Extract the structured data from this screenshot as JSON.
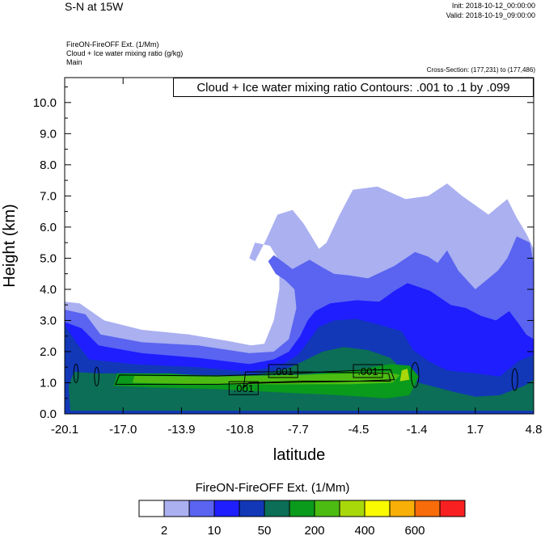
{
  "header": {
    "title": "S-N at 15W",
    "init": "Init: 2018-10-12_00:00:00",
    "valid": "Valid: 2018-10-19_09:00:00"
  },
  "fields": [
    "FireON-FireOFF Ext.   (1/Mm)",
    "Cloud + Ice water mixing ratio   (g/kg)",
    "Main"
  ],
  "cross_section": "Cross-Section: (177,231) to (177,486)",
  "contour_note": "Cloud + Ice water mixing ratio Contours: .001 to .1 by .099",
  "colorbar": {
    "label": "FireON-FireOFF Ext.  (1/Mm)",
    "colors": [
      "#ffffff",
      "#aab0f0",
      "#5a64f0",
      "#1e1eff",
      "#1238b8",
      "#0c6e56",
      "#0a9a1c",
      "#4cbc12",
      "#a8d80a",
      "#fafa00",
      "#f8b008",
      "#f86c0a",
      "#f82020"
    ],
    "tick_labels": [
      "2",
      "10",
      "50",
      "200",
      "400",
      "600"
    ]
  },
  "chart_data": {
    "type": "heatmap",
    "xlabel": "latitude",
    "ylabel": "Height (km)",
    "x_ticks": [
      "-20.1",
      "-17.0",
      "-13.9",
      "-10.8",
      "-7.7",
      "-4.5",
      "-1.4",
      "1.7",
      "4.8"
    ],
    "y_ticks": [
      "0.0",
      "1.0",
      "2.0",
      "3.0",
      "4.0",
      "5.0",
      "6.0",
      "7.0",
      "8.0",
      "9.0",
      "10.0"
    ],
    "xlim": [
      -20.1,
      4.8
    ],
    "ylim": [
      0,
      10.8
    ],
    "contour_labels": [
      {
        "text": ".001",
        "x": -8.5,
        "y": 1.35
      },
      {
        "text": ".001",
        "x": -4.0,
        "y": 1.35
      },
      {
        "text": ".001",
        "x": -10.6,
        "y": 0.8
      }
    ],
    "series": [
      {
        "level": "2",
        "color": "#aab0f0",
        "outline": [
          [
            -20.1,
            3.6
          ],
          [
            -19.3,
            3.55
          ],
          [
            -18.0,
            3.0
          ],
          [
            -16.0,
            2.7
          ],
          [
            -13.5,
            2.55
          ],
          [
            -11.5,
            2.35
          ],
          [
            -10.2,
            2.2
          ],
          [
            -9.5,
            2.25
          ],
          [
            -9.0,
            3.0
          ],
          [
            -8.7,
            4.0
          ],
          [
            -8.7,
            4.9
          ],
          [
            -9.2,
            5.4
          ],
          [
            -10.0,
            5.5
          ],
          [
            -10.3,
            5.0
          ],
          [
            -10.0,
            4.9
          ],
          [
            -9.4,
            5.6
          ],
          [
            -8.8,
            6.4
          ],
          [
            -8.0,
            6.55
          ],
          [
            -7.4,
            6.1
          ],
          [
            -6.6,
            5.3
          ],
          [
            -6.2,
            5.5
          ],
          [
            -5.5,
            6.4
          ],
          [
            -4.8,
            7.2
          ],
          [
            -3.5,
            7.3
          ],
          [
            -2.0,
            6.9
          ],
          [
            -0.8,
            7.0
          ],
          [
            0.2,
            7.4
          ],
          [
            1.0,
            7.0
          ],
          [
            1.7,
            6.7
          ],
          [
            2.4,
            6.4
          ],
          [
            3.4,
            6.9
          ],
          [
            3.9,
            6.3
          ],
          [
            4.4,
            5.8
          ],
          [
            4.8,
            5.3
          ],
          [
            4.8,
            0
          ],
          [
            -20.1,
            0
          ]
        ]
      },
      {
        "level": "10",
        "color": "#5a64f0",
        "outline": [
          [
            -20.1,
            3.35
          ],
          [
            -19.0,
            3.2
          ],
          [
            -18.2,
            2.55
          ],
          [
            -16.0,
            2.3
          ],
          [
            -13.0,
            2.2
          ],
          [
            -10.3,
            1.95
          ],
          [
            -9.0,
            2.0
          ],
          [
            -8.2,
            2.4
          ],
          [
            -7.8,
            3.4
          ],
          [
            -7.9,
            4.0
          ],
          [
            -8.4,
            4.3
          ],
          [
            -8.9,
            4.5
          ],
          [
            -9.3,
            4.9
          ],
          [
            -9.0,
            5.1
          ],
          [
            -8.0,
            4.65
          ],
          [
            -7.1,
            4.95
          ],
          [
            -6.4,
            4.7
          ],
          [
            -5.8,
            4.5
          ],
          [
            -5.0,
            4.45
          ],
          [
            -4.0,
            4.35
          ],
          [
            -2.6,
            4.75
          ],
          [
            -1.5,
            5.2
          ],
          [
            -0.8,
            5.05
          ],
          [
            -0.3,
            4.85
          ],
          [
            0.2,
            5.25
          ],
          [
            0.8,
            4.6
          ],
          [
            1.7,
            4.0
          ],
          [
            2.3,
            4.3
          ],
          [
            2.9,
            4.6
          ],
          [
            3.4,
            5.0
          ],
          [
            3.9,
            5.7
          ],
          [
            4.6,
            5.5
          ],
          [
            4.8,
            4.8
          ],
          [
            4.8,
            0
          ],
          [
            -20.1,
            0
          ]
        ]
      },
      {
        "level": "50",
        "color": "#1e1eff",
        "outline": [
          [
            -20.1,
            2.95
          ],
          [
            -19.2,
            2.75
          ],
          [
            -18.3,
            2.2
          ],
          [
            -16.0,
            1.95
          ],
          [
            -13.0,
            1.8
          ],
          [
            -10.3,
            1.6
          ],
          [
            -9.0,
            1.75
          ],
          [
            -8.2,
            2.0
          ],
          [
            -7.6,
            2.5
          ],
          [
            -7.2,
            3.0
          ],
          [
            -6.8,
            3.3
          ],
          [
            -6.0,
            3.55
          ],
          [
            -4.6,
            3.65
          ],
          [
            -3.4,
            3.6
          ],
          [
            -2.6,
            3.95
          ],
          [
            -1.9,
            4.2
          ],
          [
            -0.7,
            3.95
          ],
          [
            0.4,
            3.5
          ],
          [
            1.2,
            3.4
          ],
          [
            2.0,
            3.15
          ],
          [
            2.8,
            3.0
          ],
          [
            3.5,
            3.3
          ],
          [
            4.0,
            2.9
          ],
          [
            4.4,
            2.55
          ],
          [
            4.8,
            2.4
          ],
          [
            4.8,
            0
          ],
          [
            -20.1,
            0
          ]
        ]
      },
      {
        "level": "100",
        "color": "#1238b8",
        "outline": [
          [
            -20.1,
            2.85
          ],
          [
            -19.5,
            2.3
          ],
          [
            -18.8,
            1.75
          ],
          [
            -16.5,
            1.6
          ],
          [
            -13.0,
            1.5
          ],
          [
            -10.3,
            1.35
          ],
          [
            -8.5,
            1.6
          ],
          [
            -7.7,
            1.9
          ],
          [
            -7.2,
            2.3
          ],
          [
            -6.6,
            2.8
          ],
          [
            -5.8,
            3.0
          ],
          [
            -4.6,
            3.05
          ],
          [
            -3.3,
            2.85
          ],
          [
            -2.2,
            2.65
          ],
          [
            -1.6,
            2.05
          ],
          [
            -0.8,
            1.7
          ],
          [
            0.2,
            1.4
          ],
          [
            1.7,
            1.3
          ],
          [
            3.0,
            1.2
          ],
          [
            4.0,
            1.7
          ],
          [
            4.8,
            1.9
          ],
          [
            4.8,
            0
          ],
          [
            -20.1,
            0
          ]
        ]
      },
      {
        "level": "200",
        "color": "#0c6e56",
        "outline": [
          [
            -19.8,
            0.1
          ],
          [
            -19.9,
            0.9
          ],
          [
            -19.6,
            1.35
          ],
          [
            -18.4,
            1.3
          ],
          [
            -16.0,
            1.3
          ],
          [
            -12.5,
            1.25
          ],
          [
            -10.0,
            1.25
          ],
          [
            -8.3,
            1.45
          ],
          [
            -7.4,
            1.7
          ],
          [
            -6.4,
            2.0
          ],
          [
            -5.3,
            2.15
          ],
          [
            -4.0,
            2.05
          ],
          [
            -2.8,
            1.8
          ],
          [
            -2.0,
            1.3
          ],
          [
            -1.3,
            1.0
          ],
          [
            0.6,
            0.7
          ],
          [
            1.7,
            0.55
          ],
          [
            3.0,
            0.6
          ],
          [
            4.3,
            0.9
          ],
          [
            4.8,
            1.1
          ],
          [
            4.8,
            0.1
          ]
        ]
      },
      {
        "level": "400",
        "color": "#0a9a1c",
        "outline": [
          [
            -17.5,
            0.9
          ],
          [
            -17.3,
            1.3
          ],
          [
            -14.5,
            1.3
          ],
          [
            -11.0,
            1.15
          ],
          [
            -8.5,
            1.2
          ],
          [
            -5.5,
            1.35
          ],
          [
            -4.2,
            1.45
          ],
          [
            -2.8,
            1.6
          ],
          [
            -1.8,
            1.55
          ],
          [
            -1.3,
            1.2
          ],
          [
            -1.8,
            0.6
          ],
          [
            -3.0,
            0.5
          ],
          [
            -5.5,
            0.6
          ],
          [
            -9.0,
            0.7
          ],
          [
            -12.0,
            0.8
          ],
          [
            -15.5,
            0.85
          ]
        ]
      },
      {
        "level": "600",
        "color": "#4cbc12",
        "outline": [
          [
            -16.5,
            1.0
          ],
          [
            -16.4,
            1.22
          ],
          [
            -12.0,
            1.2
          ],
          [
            -8.0,
            1.25
          ],
          [
            -5.0,
            1.3
          ],
          [
            -3.0,
            1.35
          ],
          [
            -2.3,
            1.25
          ],
          [
            -2.7,
            1.0
          ],
          [
            -5.0,
            0.95
          ],
          [
            -9.0,
            0.95
          ],
          [
            -13.0,
            0.95
          ]
        ]
      },
      {
        "level": "800",
        "color": "#a8d80a",
        "outline": [
          [
            -2.3,
            1.05
          ],
          [
            -2.2,
            1.4
          ],
          [
            -1.9,
            1.45
          ],
          [
            -1.8,
            1.1
          ]
        ]
      }
    ]
  }
}
